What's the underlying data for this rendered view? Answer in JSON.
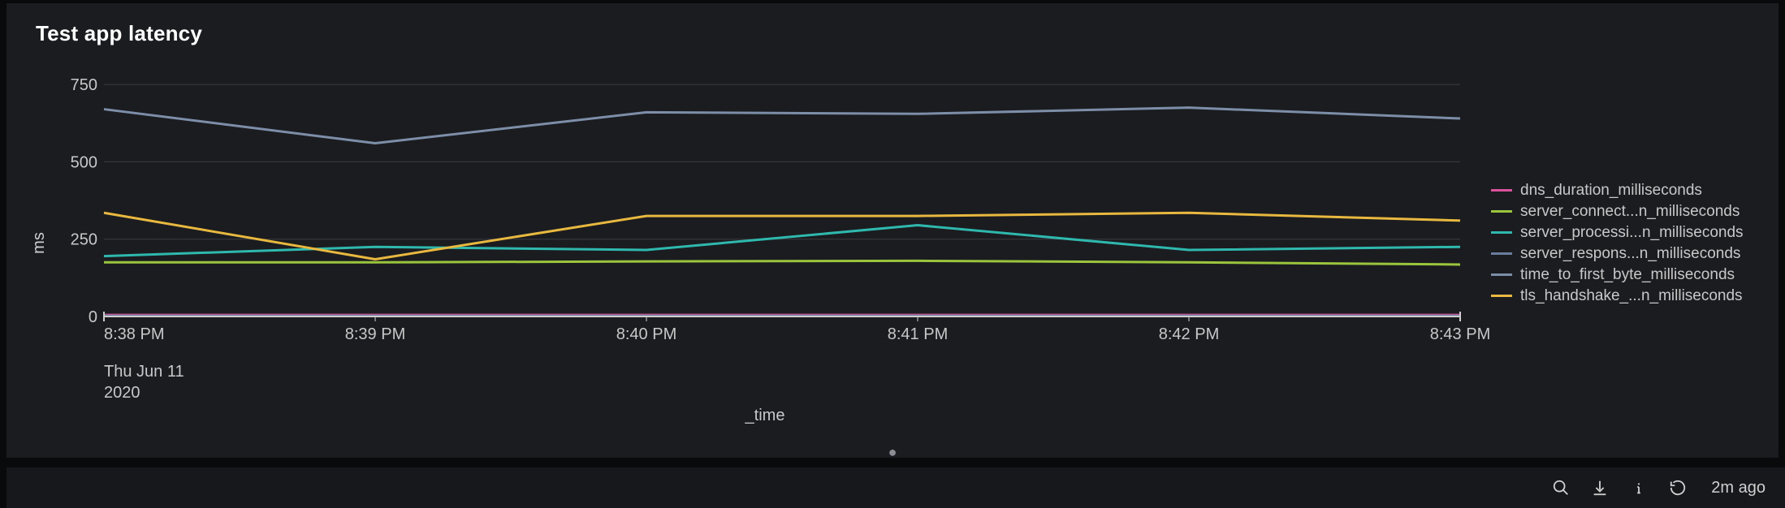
{
  "panel": {
    "title": "Test app latency",
    "background_color": "#1a1c20",
    "page_background": "#090a0c"
  },
  "chart": {
    "type": "line",
    "y_axis": {
      "label": "ms",
      "ticks": [
        0,
        250,
        500,
        750
      ],
      "ylim": [
        0,
        800
      ],
      "tick_fontsize": 20,
      "label_fontsize": 20
    },
    "x_axis": {
      "label": "_time",
      "ticks": [
        "8:38 PM",
        "8:39 PM",
        "8:40 PM",
        "8:41 PM",
        "8:42 PM",
        "8:43 PM"
      ],
      "sub_labels": [
        "Thu Jun 11",
        "2020"
      ],
      "tick_fontsize": 20,
      "label_fontsize": 20
    },
    "grid_color": "#3a3d42",
    "axis_line_color": "#cfcfcf",
    "line_width": 3,
    "plot_left_pad": 60,
    "series": [
      {
        "name": "dns_duration_milliseconds",
        "legend": "dns_duration_milliseconds",
        "color": "#d9539a",
        "values": [
          5,
          5,
          5,
          5,
          5,
          5
        ]
      },
      {
        "name": "server_connection_milliseconds",
        "legend": "server_connect...n_milliseconds",
        "color": "#9ac53c",
        "values": [
          175,
          175,
          178,
          180,
          175,
          168
        ]
      },
      {
        "name": "server_processing_milliseconds",
        "legend": "server_processi...n_milliseconds",
        "color": "#2fb8ad",
        "values": [
          195,
          225,
          215,
          295,
          215,
          225
        ]
      },
      {
        "name": "server_response_milliseconds",
        "legend": "server_respons...n_milliseconds",
        "color": "#6a7d9c",
        "values": [
          2,
          2,
          2,
          2,
          2,
          2
        ]
      },
      {
        "name": "time_to_first_byte_milliseconds",
        "legend": "time_to_first_byte_milliseconds",
        "color": "#7d8ea8",
        "values": [
          670,
          560,
          660,
          655,
          675,
          640
        ]
      },
      {
        "name": "tls_handshake_duration_milliseconds",
        "legend": "tls_handshake_...n_milliseconds",
        "color": "#e8b93e",
        "values": [
          335,
          185,
          325,
          325,
          335,
          310
        ]
      }
    ]
  },
  "footer": {
    "timestamp": "2m ago",
    "icon_color": "#cfcfcf"
  }
}
